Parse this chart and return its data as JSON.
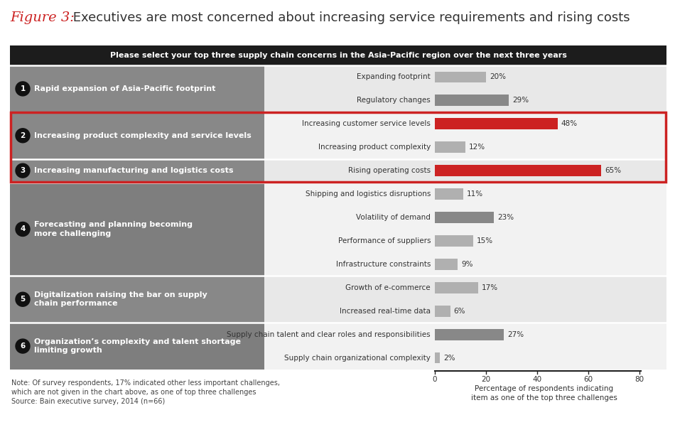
{
  "title_figure": "Figure 3:",
  "title_main": " Executives are most concerned about increasing service requirements and rising costs",
  "header": "Please select your top three supply chain concerns in the Asia-Pacific region over the next three years",
  "rows": [
    {
      "group_num": "1",
      "group_label": "Rapid expansion of Asia-Pacific footprint",
      "group_label_lines": [
        "Rapid expansion of Asia-Pacific footprint"
      ],
      "items": [
        {
          "label": "Expanding footprint",
          "value": 20,
          "color": "#b0b0b0"
        },
        {
          "label": "Regulatory changes",
          "value": 29,
          "color": "#888888"
        }
      ],
      "highlight_box": false,
      "left_bg": "#8a8a8a"
    },
    {
      "group_num": "2",
      "group_label": "Increasing product complexity and service levels",
      "group_label_lines": [
        "Increasing product complexity and service levels"
      ],
      "items": [
        {
          "label": "Increasing customer service levels",
          "value": 48,
          "color": "#cc2222"
        },
        {
          "label": "Increasing product complexity",
          "value": 12,
          "color": "#b0b0b0"
        }
      ],
      "highlight_box": true,
      "left_bg": "#8a8a8a"
    },
    {
      "group_num": "3",
      "group_label": "Increasing manufacturing and logistics costs",
      "group_label_lines": [
        "Increasing manufacturing and logistics costs"
      ],
      "items": [
        {
          "label": "Rising operating costs",
          "value": 65,
          "color": "#cc2222"
        }
      ],
      "highlight_box": true,
      "left_bg": "#8a8a8a"
    },
    {
      "group_num": "4",
      "group_label": "Forecasting and planning becoming\nmore challenging",
      "group_label_lines": [
        "Forecasting and planning becoming",
        "more challenging"
      ],
      "items": [
        {
          "label": "Shipping and logistics disruptions",
          "value": 11,
          "color": "#b0b0b0"
        },
        {
          "label": "Volatility of demand",
          "value": 23,
          "color": "#888888"
        },
        {
          "label": "Performance of suppliers",
          "value": 15,
          "color": "#b0b0b0"
        },
        {
          "label": "Infrastructure constraints",
          "value": 9,
          "color": "#b0b0b0"
        }
      ],
      "highlight_box": false,
      "left_bg": "#7a7a7a"
    },
    {
      "group_num": "5",
      "group_label": "Digitalization raising the bar on supply\nchain performance",
      "group_label_lines": [
        "Digitalization raising the bar on supply",
        "chain performance"
      ],
      "items": [
        {
          "label": "Growth of e-commerce",
          "value": 17,
          "color": "#b0b0b0"
        },
        {
          "label": "Increased real-time data",
          "value": 6,
          "color": "#b0b0b0"
        }
      ],
      "highlight_box": false,
      "left_bg": "#8a8a8a"
    },
    {
      "group_num": "6",
      "group_label": "Organization’s complexity and talent shortage\nlimiting growth",
      "group_label_lines": [
        "Organization’s complexity and talent shortage",
        "limiting growth"
      ],
      "items": [
        {
          "label": "Supply chain talent and clear roles and responsibilities",
          "value": 27,
          "color": "#888888"
        },
        {
          "label": "Supply chain organizational complexity",
          "value": 2,
          "color": "#b0b0b0"
        }
      ],
      "highlight_box": false,
      "left_bg": "#7a7a7a"
    }
  ],
  "note": "Note: Of survey respondents, 17% indicated other less important challenges,\nwhich are not given in the chart above, as one of top three challenges\nSource: Bain executive survey, 2014 (n=66)",
  "x_label": "Percentage of respondents indicating\nitem as one of the top three challenges",
  "x_max": 80,
  "x_ticks": [
    0,
    20,
    40,
    60,
    80
  ],
  "header_bg": "#1c1c1c",
  "header_fg": "#ffffff",
  "highlight_border_color": "#cc2222",
  "figure_label_color": "#cc2222",
  "title_color": "#333333",
  "right_panel_bg_even": "#e8e8e8",
  "right_panel_bg_odd": "#f2f2f2",
  "separator_color": "#ffffff"
}
